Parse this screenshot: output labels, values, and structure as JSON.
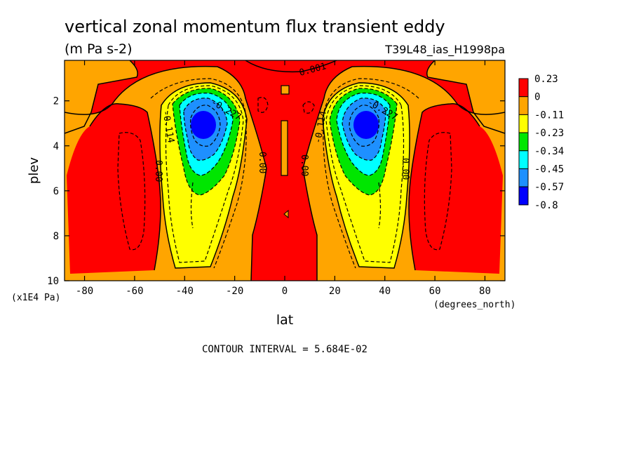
{
  "chart_data": {
    "type": "contour",
    "title": "vertical zonal momentum flux transient eddy",
    "units": "(m Pa s-2)",
    "dataset": "T39L48_ias_H1998pa",
    "xlabel": "lat",
    "x_units": "(degrees_north)",
    "ylabel": "plev",
    "y_units": "(x1E4 Pa)",
    "contour_interval": "CONTOUR INTERVAL = 5.684E-02",
    "xlim": [
      -88,
      88
    ],
    "ylim": [
      10,
      0.2
    ],
    "x_ticks": [
      -80,
      -60,
      -40,
      -20,
      0,
      20,
      40,
      60,
      80
    ],
    "y_ticks": [
      2,
      4,
      6,
      8,
      10
    ],
    "colorbar": {
      "labels": [
        "0.23",
        "0",
        "-0.11",
        "-0.23",
        "-0.34",
        "-0.45",
        "-0.57",
        "-0.8"
      ],
      "colors": [
        "#ff0000",
        "#ffa500",
        "#ffff00",
        "#00e600",
        "#00ffff",
        "#1e90ff",
        "#0000ff"
      ]
    },
    "contour_labels": [
      "0.001",
      "-0.227",
      "-0.114",
      "0.00",
      "0.00",
      "0.00",
      "-0.227",
      "-0.114",
      "0.00"
    ],
    "minima": [
      {
        "lat": -33,
        "plev": 3.1,
        "value": "-0.8"
      },
      {
        "lat": 33,
        "plev": 3.1,
        "value": "-0.8"
      }
    ]
  }
}
